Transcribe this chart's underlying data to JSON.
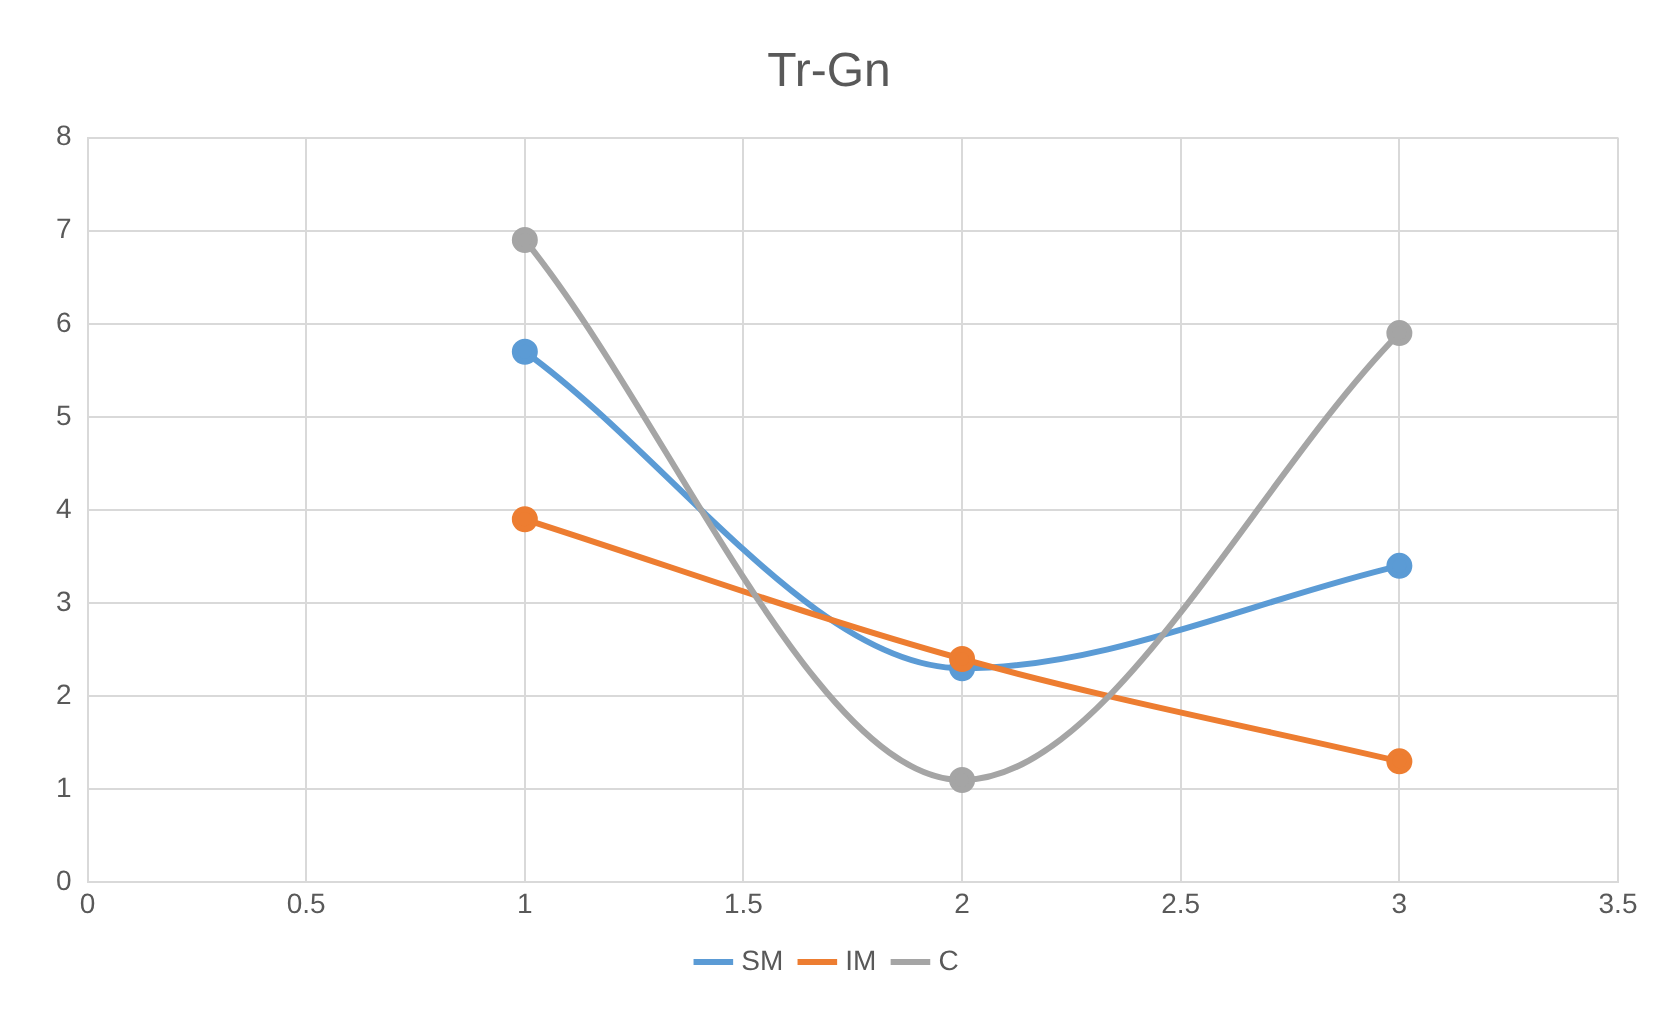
{
  "chart_data": {
    "type": "line",
    "title": "Tr-Gn",
    "x": [
      1,
      2,
      3
    ],
    "series": [
      {
        "name": "SM",
        "color": "#5b9bd5",
        "values": [
          5.7,
          2.3,
          3.4
        ]
      },
      {
        "name": "IM",
        "color": "#ed7d31",
        "values": [
          3.9,
          2.4,
          1.3
        ]
      },
      {
        "name": "C",
        "color": "#a5a5a5",
        "values": [
          6.9,
          1.1,
          5.9
        ]
      }
    ],
    "xlim": [
      0,
      3.5
    ],
    "xticks": [
      0,
      0.5,
      1,
      1.5,
      2,
      2.5,
      3,
      3.5
    ],
    "ylim": [
      0,
      8
    ],
    "yticks": [
      0,
      1,
      2,
      3,
      4,
      5,
      6,
      7,
      8
    ],
    "grid": true,
    "legend": "bottom",
    "marker": "circle",
    "line_style": "solid"
  }
}
